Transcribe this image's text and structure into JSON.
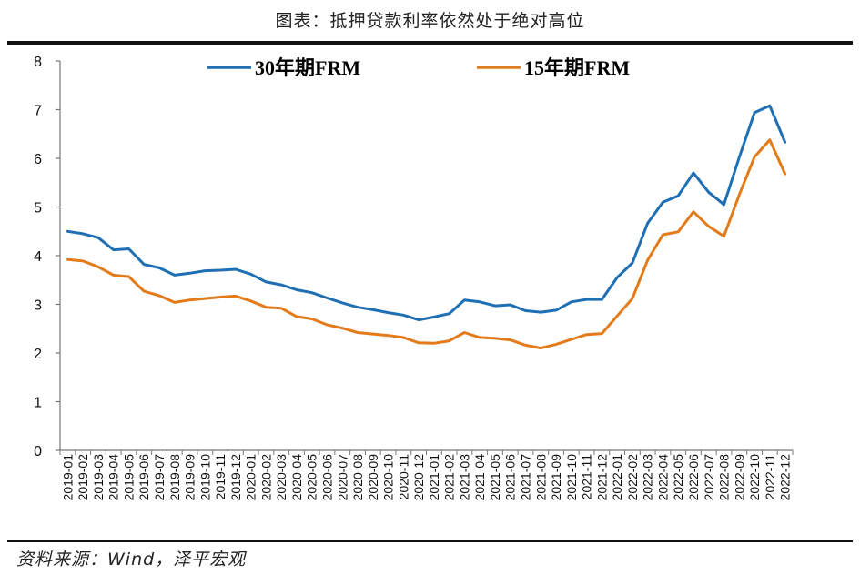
{
  "title": "图表：抵押贷款利率依然处于绝对高位",
  "source": "资料来源：Wind，泽平宏观",
  "chart_data": {
    "type": "line",
    "ylim": [
      0,
      8
    ],
    "yticks": [
      "0",
      "1",
      "2",
      "3",
      "4",
      "5",
      "6",
      "7",
      "8"
    ],
    "x_tick_labels": [
      "2019-01",
      "2019-02",
      "2019-03",
      "2019-04",
      "2019-05",
      "2019-06",
      "2019-07",
      "2019-08",
      "2019-09",
      "2019-10",
      "2019-11",
      "2019-12",
      "2020-01",
      "2020-02",
      "2020-03",
      "2020-04",
      "2020-05",
      "2020-06",
      "2020-07",
      "2020-08",
      "2020-09",
      "2020-10",
      "2020-11",
      "2020-12",
      "2021-01",
      "2021-02",
      "2021-03",
      "2021-04",
      "2021-05",
      "2021-06",
      "2021-07",
      "2021-08",
      "2021-09",
      "2021-10",
      "2021-11",
      "2021-12",
      "2022-01",
      "2022-02",
      "2022-03",
      "2022-04",
      "2022-05",
      "2022-06",
      "2022-07",
      "2022-08",
      "2022-09",
      "2022-10",
      "2022-11",
      "2022-12"
    ],
    "legend_position": "top",
    "grid": false,
    "series": [
      {
        "name": "30年期FRM",
        "color": "#1f6fb4",
        "values": [
          4.5,
          4.45,
          4.37,
          4.12,
          4.14,
          3.82,
          3.75,
          3.6,
          3.64,
          3.69,
          3.7,
          3.72,
          3.62,
          3.46,
          3.4,
          3.3,
          3.24,
          3.13,
          3.03,
          2.94,
          2.89,
          2.83,
          2.78,
          2.68,
          2.74,
          2.81,
          3.09,
          3.05,
          2.97,
          2.99,
          2.87,
          2.84,
          2.88,
          3.05,
          3.1,
          3.1,
          3.55,
          3.85,
          4.67,
          5.1,
          5.23,
          5.7,
          5.3,
          5.05,
          6.02,
          6.94,
          7.08,
          6.33
        ]
      },
      {
        "name": "15年期FRM",
        "color": "#e37b1a",
        "values": [
          3.92,
          3.89,
          3.77,
          3.6,
          3.57,
          3.27,
          3.18,
          3.04,
          3.09,
          3.12,
          3.15,
          3.17,
          3.07,
          2.94,
          2.92,
          2.75,
          2.7,
          2.58,
          2.51,
          2.42,
          2.39,
          2.36,
          2.32,
          2.21,
          2.2,
          2.25,
          2.42,
          2.32,
          2.3,
          2.27,
          2.16,
          2.1,
          2.18,
          2.28,
          2.38,
          2.4,
          2.76,
          3.12,
          3.91,
          4.43,
          4.49,
          4.9,
          4.6,
          4.4,
          5.25,
          6.03,
          6.38,
          5.68
        ]
      }
    ]
  }
}
